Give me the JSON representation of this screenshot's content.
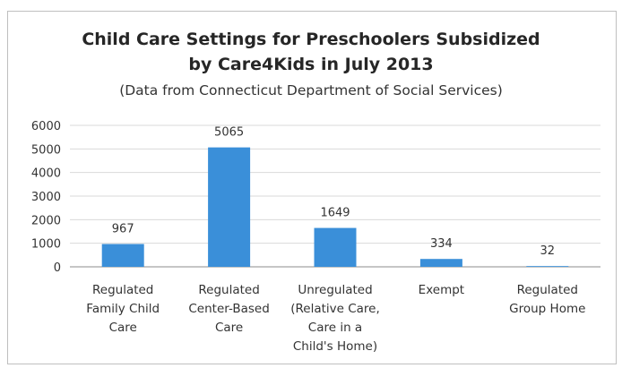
{
  "chart_data": {
    "type": "bar",
    "title_lines": [
      "Child Care Settings for Preschoolers Subsidized",
      "by Care4Kids in July 2013"
    ],
    "subtitle": "(Data from Connecticut Department of Social Services)",
    "xlabel": "",
    "ylabel": "",
    "ylim": [
      0,
      6000
    ],
    "yticks": [
      0,
      1000,
      2000,
      3000,
      4000,
      5000,
      6000
    ],
    "grid": true,
    "legend": "none",
    "bar_color": "#3a8fd9",
    "categories": [
      [
        "Regulated",
        "Family Child",
        "Care"
      ],
      [
        "Regulated",
        "Center-Based",
        "Care"
      ],
      [
        "Unregulated",
        "(Relative Care,",
        "Care in a",
        "Child's Home)"
      ],
      [
        "Exempt"
      ],
      [
        "Regulated",
        "Group Home"
      ]
    ],
    "values": [
      967,
      5065,
      1649,
      334,
      32
    ],
    "data_labels": [
      "967",
      "5065",
      "1649",
      "334",
      "32"
    ]
  }
}
